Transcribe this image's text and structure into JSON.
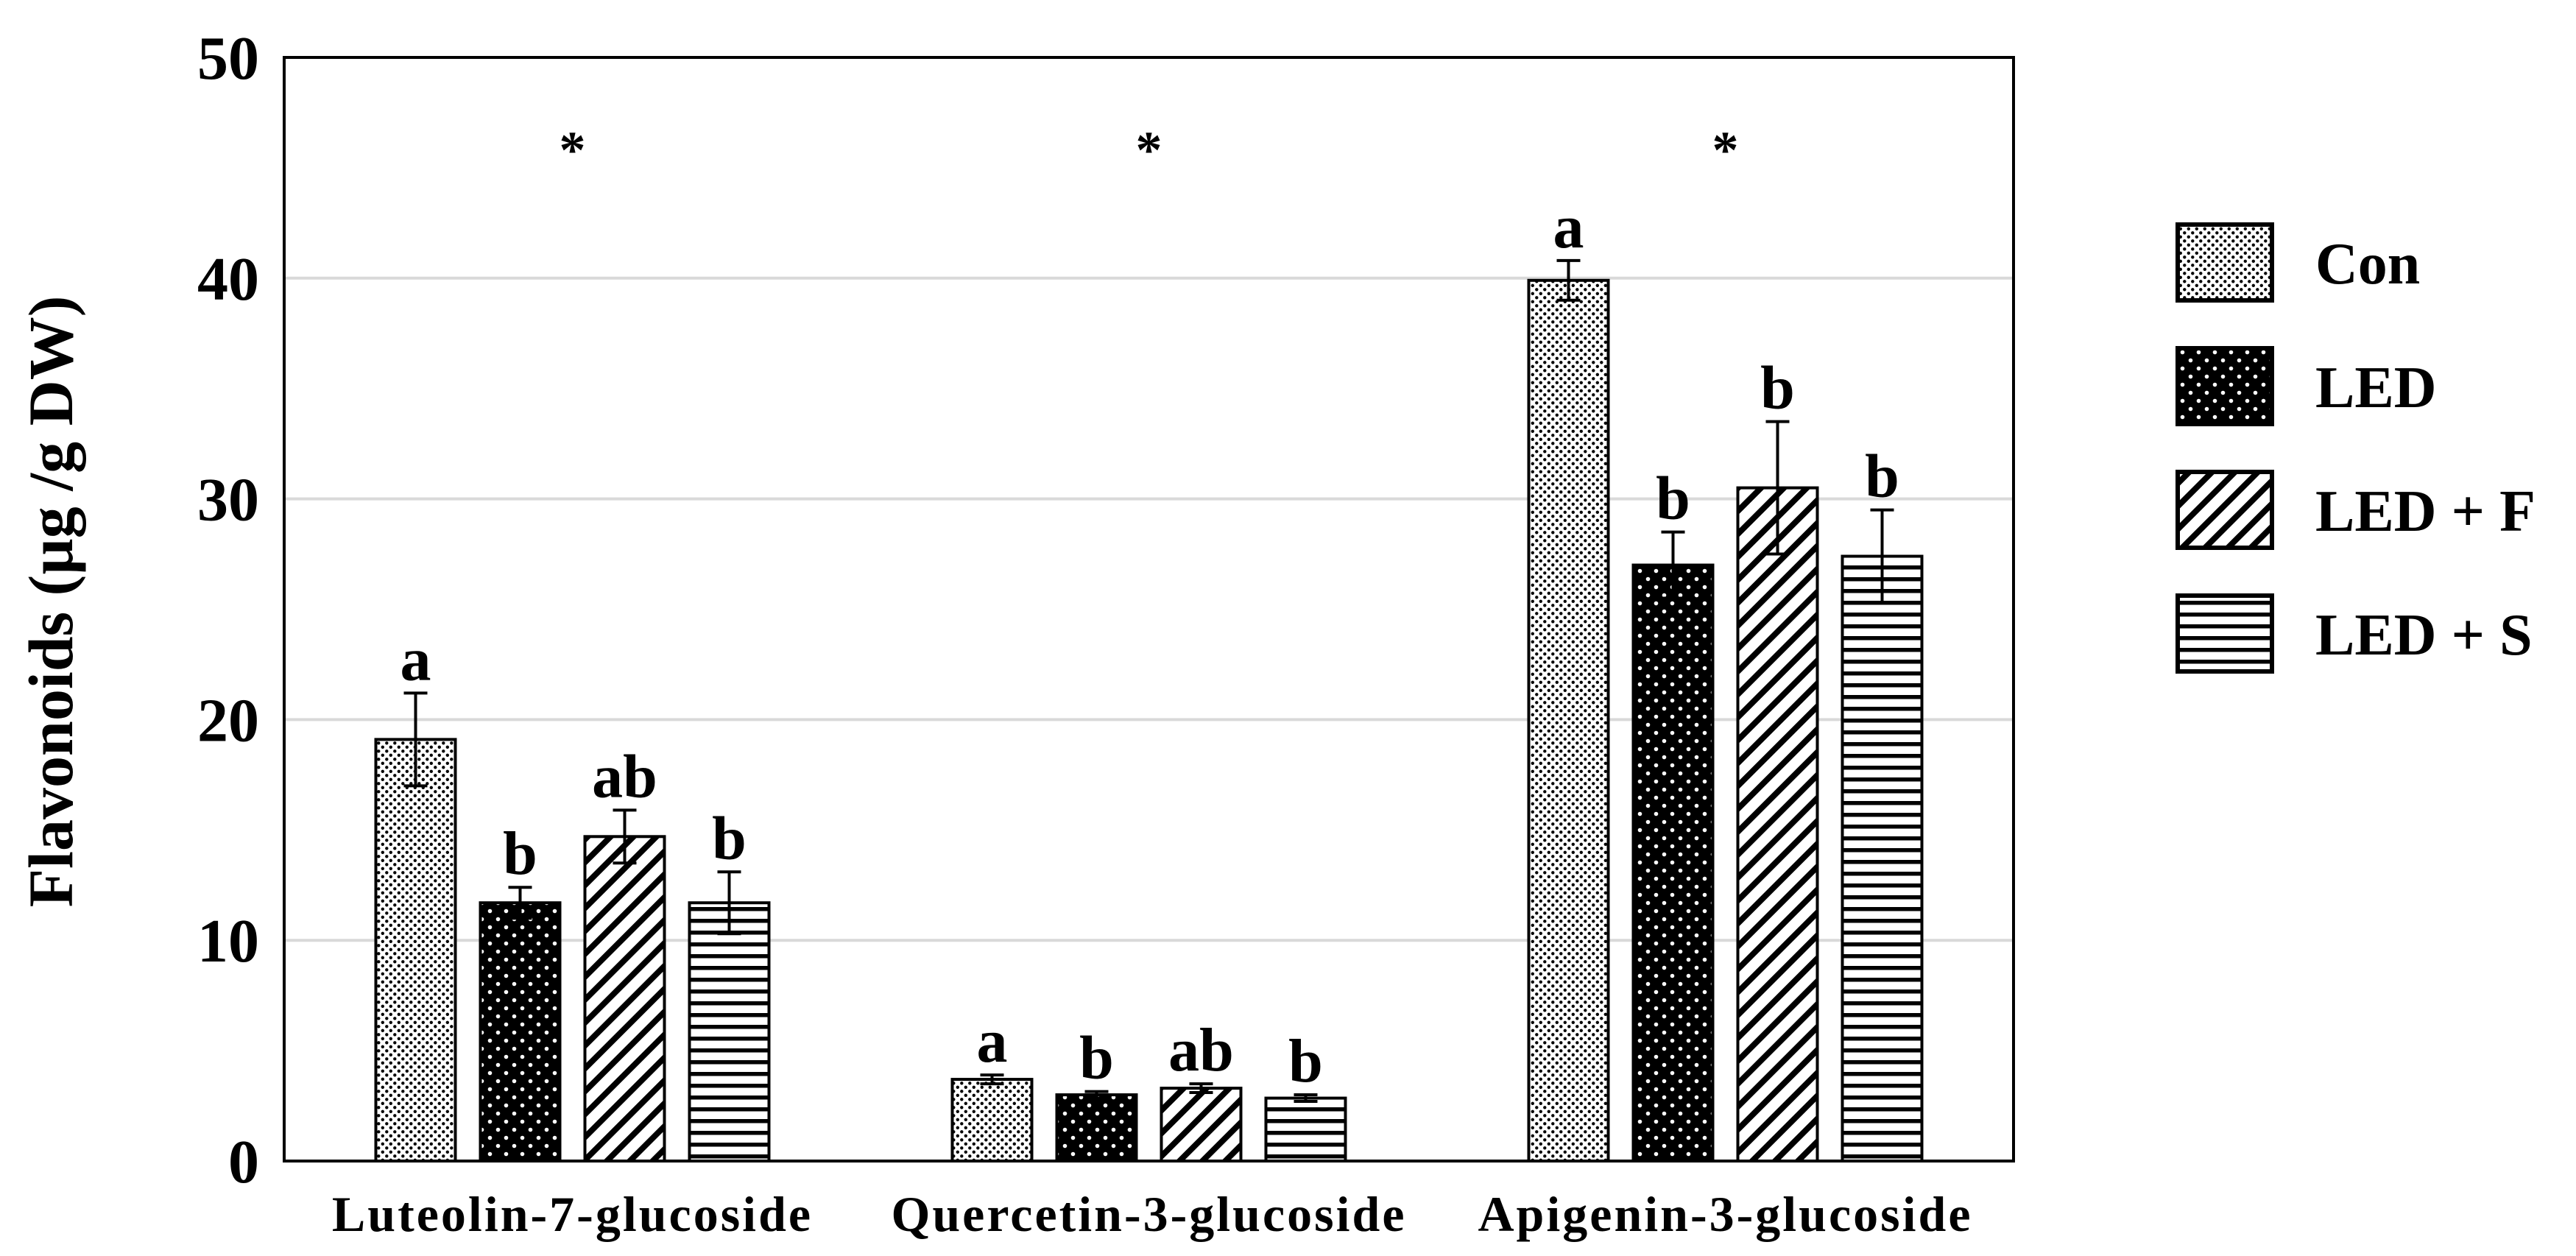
{
  "chart_data": {
    "type": "bar",
    "title": "",
    "xlabel": "",
    "ylabel": "Flavonoids (µg /g DW)",
    "ylim": [
      0,
      50
    ],
    "yticks": [
      0,
      10,
      20,
      30,
      40,
      50
    ],
    "grid": true,
    "legend_position": "right",
    "categories": [
      "Luteolin-7-glucoside",
      "Quercetin-3-glucoside",
      "Apigenin-3-glucoside"
    ],
    "category_markers": [
      "*",
      "*",
      "*"
    ],
    "series": [
      {
        "name": "Con",
        "pattern": "fine-dots",
        "values": [
          19.1,
          3.7,
          39.9
        ],
        "errors": [
          2.1,
          0.2,
          0.9
        ],
        "labels": [
          "a",
          "a",
          "a"
        ]
      },
      {
        "name": "LED",
        "pattern": "dark-dots",
        "values": [
          11.7,
          3.0,
          27.0
        ],
        "errors": [
          0.7,
          0.15,
          1.5
        ],
        "labels": [
          "b",
          "b",
          "b"
        ]
      },
      {
        "name": "LED + F",
        "pattern": "diagonal",
        "values": [
          14.7,
          3.3,
          30.5
        ],
        "errors": [
          1.2,
          0.2,
          3.0
        ],
        "labels": [
          "ab",
          "ab",
          "b"
        ]
      },
      {
        "name": "LED + S",
        "pattern": "horizontal",
        "values": [
          11.7,
          2.85,
          27.4
        ],
        "errors": [
          1.4,
          0.15,
          2.1
        ],
        "labels": [
          "b",
          "b",
          "b"
        ]
      }
    ]
  }
}
